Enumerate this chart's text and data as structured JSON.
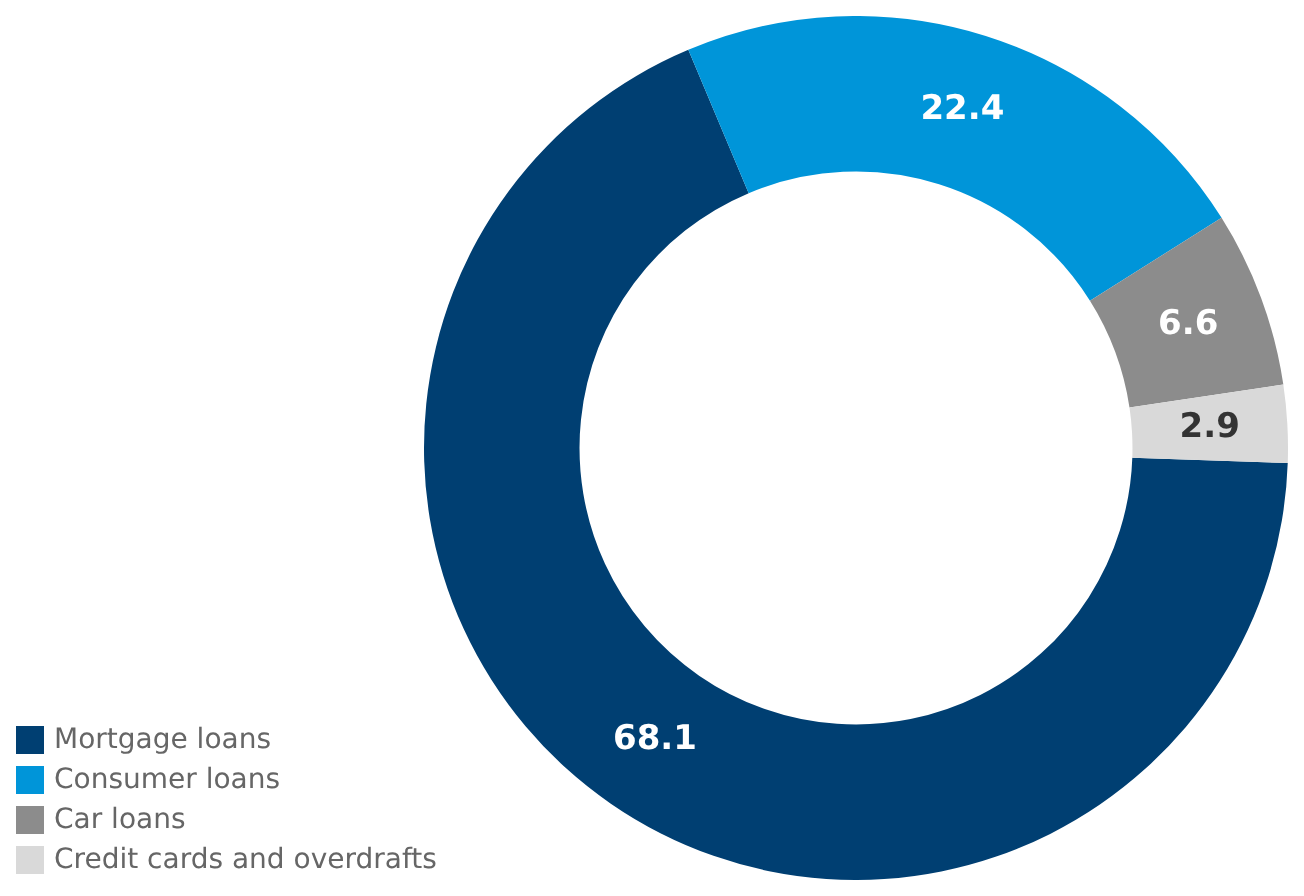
{
  "chart_data": {
    "type": "donut",
    "categories": [
      "Mortgage loans",
      "Consumer loans",
      "Car loans",
      "Credit cards and overdrafts"
    ],
    "values": [
      68.1,
      22.4,
      6.6,
      2.9
    ],
    "colors": [
      "#003f72",
      "#0095d9",
      "#8c8c8c",
      "#d9d9d9"
    ],
    "data_labels": true,
    "legend": "bottom left"
  }
}
